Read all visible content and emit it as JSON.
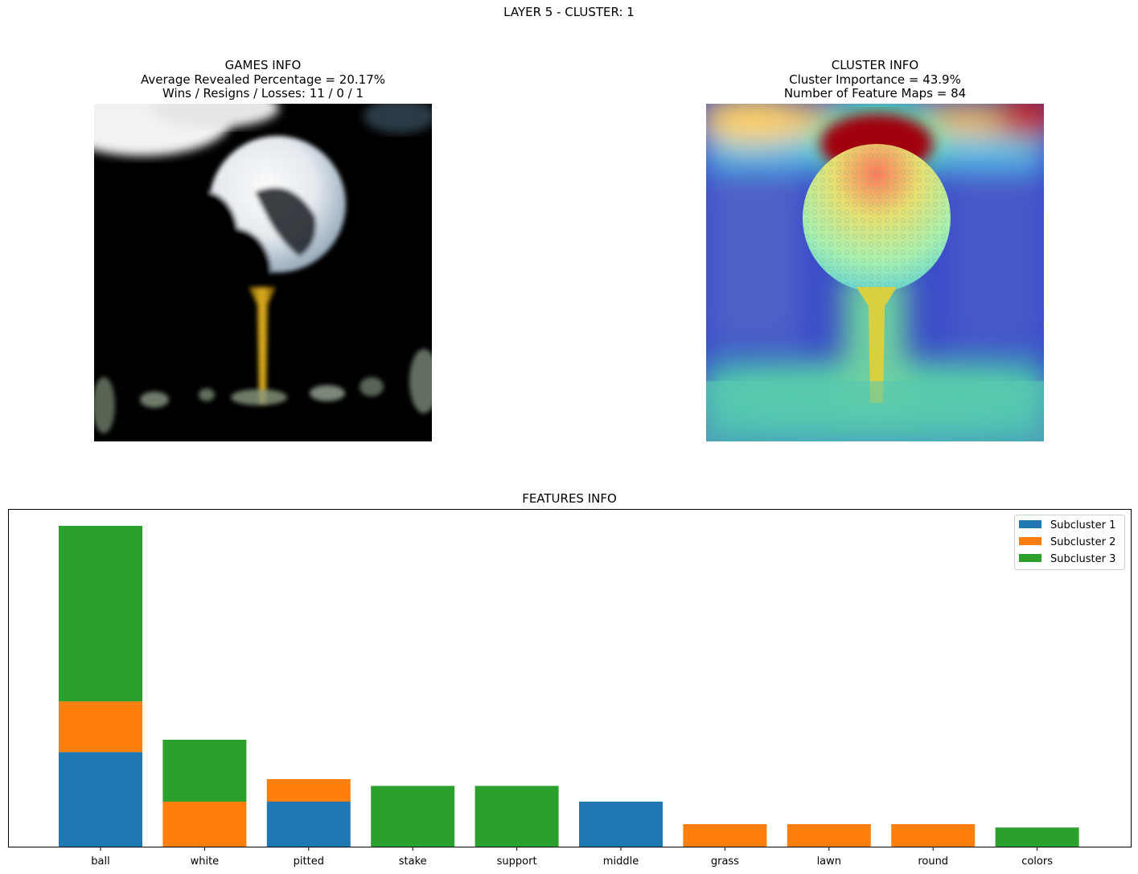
{
  "suptitle": "LAYER 5 - CLUSTER: 1",
  "games_panel": {
    "title": "GAMES INFO",
    "line1": "Average Revealed Percentage = 20.17%",
    "line2": "Wins / Resigns / Losses: 11 / 0 / 1"
  },
  "cluster_panel": {
    "title": "CLUSTER INFO",
    "line1": "Cluster Importance = 43.9%",
    "line2": "Number of Feature Maps = 84"
  },
  "chart_data": {
    "type": "bar",
    "stacked": true,
    "title": "FEATURES INFO",
    "categories": [
      "ball",
      "white",
      "pitted",
      "stake",
      "support",
      "middle",
      "grass",
      "lawn",
      "round",
      "colors"
    ],
    "series": [
      {
        "name": "Subcluster 1",
        "color": "#1f77b4",
        "values": [
          0.168,
          0,
          0.08,
          0,
          0,
          0.08,
          0,
          0,
          0,
          0
        ]
      },
      {
        "name": "Subcluster 2",
        "color": "#ff7f0e",
        "values": [
          0.09,
          0.08,
          0.04,
          0,
          0,
          0,
          0.04,
          0.04,
          0.04,
          0
        ]
      },
      {
        "name": "Subcluster 3",
        "color": "#2ca02c",
        "values": [
          0.312,
          0.11,
          0,
          0.108,
          0.108,
          0,
          0,
          0,
          0,
          0.034
        ]
      }
    ],
    "ylim": [
      0,
      0.6
    ],
    "yaxis_visible": false,
    "legend": "top-right",
    "grid": false
  }
}
